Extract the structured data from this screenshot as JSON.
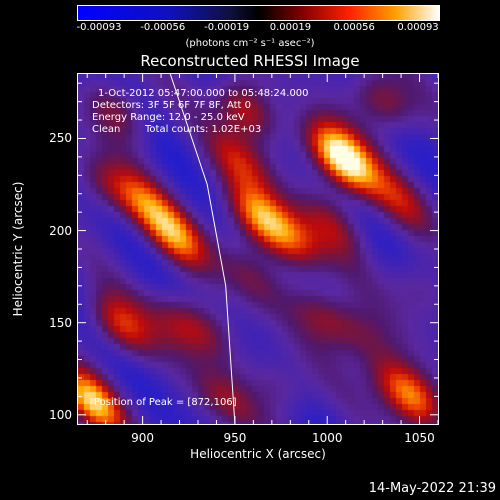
{
  "colorbar": {
    "ticks": [
      "-0.00093",
      "-0.00056",
      "-0.00019",
      "0.00019",
      "0.00056",
      "0.00093"
    ],
    "units": "(photons cm⁻² s⁻¹ asec⁻²)"
  },
  "title": "Reconstructed RHESSI Image",
  "info": {
    "time_range": "1-Oct-2012 05:47:00.000 to 05:48:24.000",
    "detectors": "Detectors: 3F 5F 6F 7F 8F, Att 0",
    "energy": "Energy Range: 12.0 - 25.0 keV",
    "method": "Clean",
    "counts": "Total counts: 1.02E+03",
    "peak": "Position of Peak = [872,106]"
  },
  "footer": {
    "date": "14-May-2022 21:39"
  },
  "chart_data": {
    "type": "heatmap",
    "title": "Reconstructed RHESSI Image",
    "xlabel": "Heliocentric X (arcsec)",
    "ylabel": "Heliocentric Y (arcsec)",
    "xlim": [
      865,
      1060
    ],
    "ylim": [
      95,
      285
    ],
    "xticks": [
      900,
      950,
      1000,
      1050
    ],
    "yticks": [
      100,
      150,
      200,
      250
    ],
    "xtick_labels": [
      "900",
      "950",
      "1000",
      "1050"
    ],
    "ytick_labels": [
      "100",
      "150",
      "200",
      "250"
    ],
    "color_range": [
      -0.00093,
      0.00093
    ],
    "peak": [
      872,
      106
    ],
    "limb_curve": [
      [
        915,
        285
      ],
      [
        935,
        225
      ],
      [
        945,
        170
      ],
      [
        950,
        95
      ]
    ],
    "blobs": [
      {
        "x": 872,
        "y": 107,
        "amp": 1.0
      },
      {
        "x": 887,
        "y": 148,
        "amp": 0.75
      },
      {
        "x": 918,
        "y": 196,
        "amp": 0.8
      },
      {
        "x": 900,
        "y": 215,
        "amp": 0.6
      },
      {
        "x": 887,
        "y": 265,
        "amp": 0.55
      },
      {
        "x": 878,
        "y": 225,
        "amp": 0.45
      },
      {
        "x": 920,
        "y": 150,
        "amp": 0.45
      },
      {
        "x": 935,
        "y": 145,
        "amp": 0.4
      },
      {
        "x": 945,
        "y": 108,
        "amp": 0.45
      },
      {
        "x": 953,
        "y": 237,
        "amp": 0.55
      },
      {
        "x": 963,
        "y": 208,
        "amp": 0.9
      },
      {
        "x": 981,
        "y": 194,
        "amp": 0.7
      },
      {
        "x": 955,
        "y": 266,
        "amp": 0.75
      },
      {
        "x": 1004,
        "y": 244,
        "amp": 0.85
      },
      {
        "x": 1012,
        "y": 233,
        "amp": 0.75
      },
      {
        "x": 1030,
        "y": 270,
        "amp": 0.7
      },
      {
        "x": 998,
        "y": 154,
        "amp": 0.55
      },
      {
        "x": 1018,
        "y": 143,
        "amp": 0.45
      },
      {
        "x": 1040,
        "y": 215,
        "amp": 0.45
      },
      {
        "x": 1005,
        "y": 203,
        "amp": 0.45
      },
      {
        "x": 1048,
        "y": 108,
        "amp": 0.8
      },
      {
        "x": 1035,
        "y": 118,
        "amp": 0.45
      },
      {
        "x": 975,
        "y": 115,
        "amp": 0.4
      },
      {
        "x": 958,
        "y": 175,
        "amp": 0.35
      },
      {
        "x": 1050,
        "y": 168,
        "amp": 0.35
      }
    ]
  }
}
